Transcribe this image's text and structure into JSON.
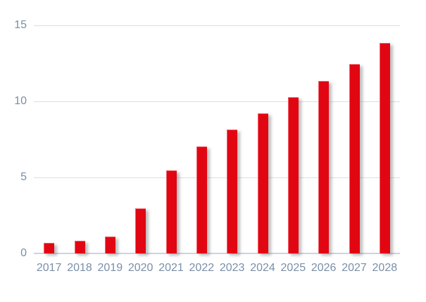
{
  "chart_data": {
    "type": "bar",
    "title": "",
    "xlabel": "",
    "ylabel": "",
    "categories": [
      "2017",
      "2018",
      "2019",
      "2020",
      "2021",
      "2022",
      "2023",
      "2024",
      "2025",
      "2026",
      "2027",
      "2028"
    ],
    "values": [
      0.7,
      0.85,
      1.1,
      2.95,
      5.45,
      7.05,
      8.15,
      9.2,
      10.3,
      11.35,
      12.45,
      13.85
    ],
    "ylim": [
      0,
      15
    ],
    "y_ticks": [
      "0",
      "5",
      "10",
      "15"
    ],
    "grid": "horizontal",
    "legend": "none",
    "bar_color": "#e20613",
    "axis_label_color": "#7a8fa8",
    "gridline_color": "#d9dfe8",
    "baseline_color": "#ccd4de"
  }
}
